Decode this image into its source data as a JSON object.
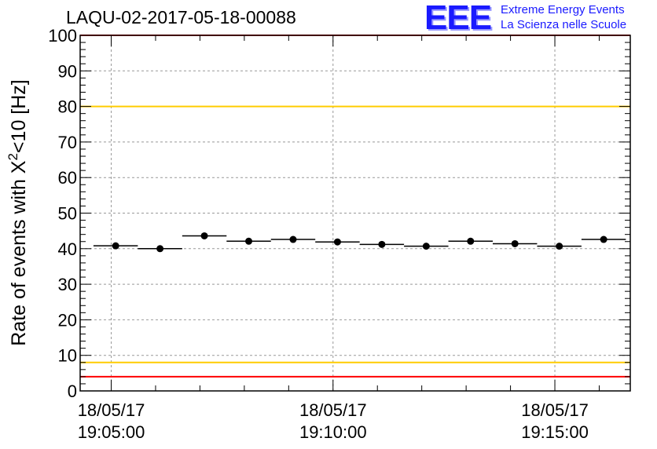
{
  "title": "LAQU-02-2017-05-18-00088",
  "logo": {
    "mark": "EEE",
    "line1": "Extreme Energy Events",
    "line2": "La Scienza nelle Scuole"
  },
  "colors": {
    "limit_red": "#ff0000",
    "limit_yellow": "#ffcc00",
    "logo_blue": "#1a1aff",
    "grid": "#999999"
  },
  "chart_data": {
    "type": "scatter",
    "title": "LAQU-02-2017-05-18-00088",
    "ylabel_main": "Rate of events with X",
    "ylabel_sup": "2",
    "ylabel_tail": "<10 [Hz]",
    "xlabel": "",
    "x_unit": "minutes after 18/05/17 19:05:00",
    "xlim": [
      -0.7,
      11.7
    ],
    "ylim": [
      0,
      100
    ],
    "yticks": [
      0,
      10,
      20,
      30,
      40,
      50,
      60,
      70,
      80,
      90,
      100
    ],
    "xticks": [
      {
        "x": 0,
        "line1": "18/05/17",
        "line2": "19:05:00"
      },
      {
        "x": 5,
        "line1": "18/05/17",
        "line2": "19:10:00"
      },
      {
        "x": 10,
        "line1": "18/05/17",
        "line2": "19:15:00"
      }
    ],
    "grid": true,
    "bin_halfwidth": 0.5,
    "points": [
      {
        "x": 0.1,
        "y": 40.8
      },
      {
        "x": 1.1,
        "y": 40.0
      },
      {
        "x": 2.1,
        "y": 43.6
      },
      {
        "x": 3.1,
        "y": 42.1
      },
      {
        "x": 4.1,
        "y": 42.6
      },
      {
        "x": 5.1,
        "y": 41.9
      },
      {
        "x": 6.1,
        "y": 41.2
      },
      {
        "x": 7.1,
        "y": 40.7
      },
      {
        "x": 8.1,
        "y": 42.1
      },
      {
        "x": 9.1,
        "y": 41.4
      },
      {
        "x": 10.1,
        "y": 40.7
      },
      {
        "x": 11.1,
        "y": 42.6
      }
    ],
    "reference_lines": [
      {
        "y": 100,
        "color": "#ff0000"
      },
      {
        "y": 80,
        "color": "#ffcc00"
      },
      {
        "y": 8,
        "color": "#ffcc00"
      },
      {
        "y": 4,
        "color": "#ff0000"
      }
    ]
  }
}
